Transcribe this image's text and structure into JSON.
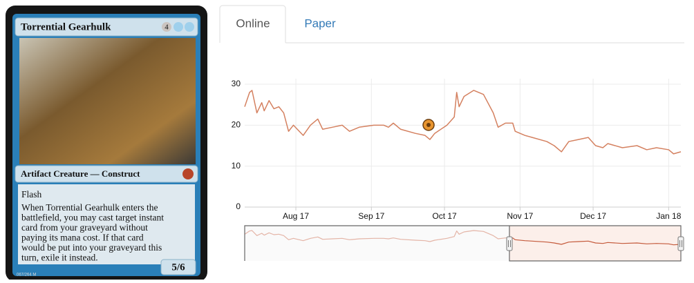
{
  "card": {
    "name": "Torrential Gearhulk",
    "mana_cost": "4",
    "type_line": "Artifact Creature — Construct",
    "rules_text": [
      "Flash",
      "When Torrential Gearhulk enters the",
      "battlefield, you may cast target instant",
      "card from your graveyard without",
      "paying its mana cost. If that card",
      "would be put into your graveyard this",
      "turn, exile it instead."
    ],
    "power_toughness": "5/6",
    "collector_number": "067/264 M"
  },
  "tabs": [
    "Online",
    "Paper"
  ],
  "chart_data": {
    "type": "line",
    "x": [
      0,
      2,
      3,
      5,
      7,
      8,
      10,
      12,
      14,
      16,
      18,
      20,
      24,
      27,
      30,
      32,
      36,
      40,
      43,
      47,
      53,
      57,
      59,
      61,
      64,
      70,
      74,
      76,
      78,
      83,
      86,
      87,
      88,
      90,
      94,
      98,
      102,
      104,
      107,
      110,
      111,
      115,
      118,
      124,
      127,
      130,
      133,
      137,
      141,
      144,
      147,
      149,
      155,
      161,
      165,
      169,
      174,
      176,
      179
    ],
    "values": [
      24.5,
      28,
      28.5,
      23,
      25.5,
      23.5,
      26,
      24,
      24.5,
      23,
      18.5,
      20,
      17.5,
      20,
      21.5,
      19,
      19.5,
      20,
      18.5,
      19.5,
      20,
      20,
      19.5,
      20.5,
      19,
      18,
      17.5,
      16.5,
      18,
      20,
      22,
      28,
      24.5,
      27,
      28.5,
      27.5,
      23,
      19.5,
      20.5,
      20.5,
      18.5,
      17.5,
      17,
      16,
      15,
      13.5,
      16,
      16.5,
      17,
      15,
      14.5,
      15.5,
      14.5,
      15,
      14,
      14.5,
      14,
      13,
      13.5
    ],
    "color": "#d4805f",
    "xlim": [
      0,
      179
    ],
    "xticks": [
      {
        "value": 21,
        "label": "Aug 17"
      },
      {
        "value": 52,
        "label": "Sep 17"
      },
      {
        "value": 82,
        "label": "Oct 17"
      },
      {
        "value": 113,
        "label": "Nov 17"
      },
      {
        "value": 143,
        "label": "Dec 17"
      },
      {
        "value": 174,
        "label": "Jan 18"
      }
    ],
    "ylim": [
      0,
      30
    ],
    "yticks": [
      0,
      10,
      20,
      30
    ],
    "grid": true
  }
}
